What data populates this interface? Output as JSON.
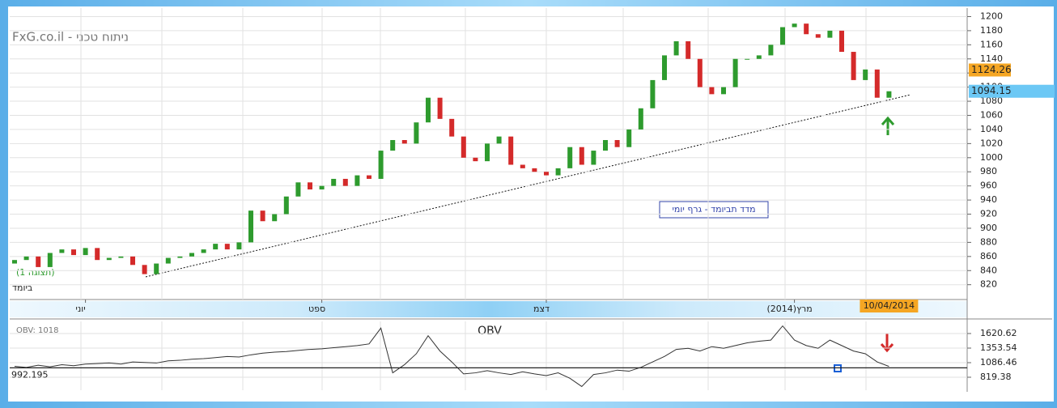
{
  "chart_data": [
    {
      "type": "candlestick",
      "title": "FxG.co.il - ניתוח טכני",
      "subtitle": "ביומד",
      "annotations": [
        "(תצוגה 1)",
        "מדד תביומד - גרף יומי"
      ],
      "categories": [
        null,
        null,
        null,
        null,
        null,
        null,
        "יוני",
        null,
        null,
        null,
        null,
        null,
        null,
        null,
        null,
        null,
        null,
        null,
        null,
        null,
        null,
        null,
        null,
        null,
        null,
        null,
        "ספט",
        null,
        null,
        null,
        null,
        null,
        null,
        null,
        null,
        null,
        null,
        null,
        null,
        null,
        null,
        null,
        null,
        null,
        null,
        "דצמ",
        null,
        null,
        null,
        null,
        null,
        null,
        null,
        null,
        null,
        null,
        null,
        null,
        null,
        null,
        null,
        null,
        null,
        null,
        null,
        null,
        "מרץ(2014)",
        null,
        null,
        null,
        null,
        null,
        null,
        null,
        "10/04/2014"
      ],
      "open": [
        850,
        855,
        860,
        845,
        865,
        870,
        862,
        872,
        855,
        858,
        860,
        848,
        835,
        850,
        858,
        860,
        865,
        870,
        878,
        870,
        880,
        925,
        910,
        920,
        945,
        965,
        955,
        960,
        970,
        960,
        975,
        970,
        1010,
        1025,
        1020,
        1050,
        1085,
        1055,
        1030,
        1000,
        995,
        1020,
        1030,
        990,
        985,
        980,
        975,
        985,
        1015,
        990,
        1010,
        1025,
        1015,
        1040,
        1070,
        1110,
        1145,
        1165,
        1140,
        1100,
        1090,
        1100,
        1140,
        1140,
        1145,
        1160,
        1185,
        1190,
        1175,
        1170,
        1180,
        1150,
        1110,
        1125,
        1085
      ],
      "close": [
        855,
        860,
        845,
        865,
        870,
        862,
        872,
        855,
        858,
        860,
        848,
        835,
        850,
        858,
        860,
        865,
        870,
        878,
        870,
        880,
        925,
        910,
        920,
        945,
        965,
        955,
        960,
        970,
        960,
        975,
        970,
        1010,
        1025,
        1020,
        1050,
        1085,
        1055,
        1030,
        1000,
        995,
        1020,
        1030,
        990,
        985,
        980,
        975,
        985,
        1015,
        990,
        1010,
        1025,
        1015,
        1040,
        1070,
        1110,
        1145,
        1165,
        1140,
        1100,
        1090,
        1100,
        1140,
        1140,
        1145,
        1160,
        1185,
        1190,
        1175,
        1170,
        1180,
        1150,
        1110,
        1125,
        1085,
        1094.15
      ],
      "up_color": "#2e9b2e",
      "down_color": "#d42a2a",
      "ylim": [
        799,
        1212
      ],
      "yticks": [
        820,
        840,
        860,
        880,
        900,
        920,
        940,
        960,
        980,
        1000,
        1020,
        1040,
        1060,
        1080,
        1100,
        1120,
        1140,
        1160,
        1180,
        1200
      ],
      "grid": true,
      "price_markers": [
        {
          "value": 1124.26,
          "color": "#f5a623"
        },
        {
          "value": 1094.15,
          "color": "#6cc8f5"
        }
      ]
    },
    {
      "type": "line",
      "title": "OBV",
      "label": "OBV: 1018",
      "color": "#333333",
      "values": [
        1020,
        1000,
        1040,
        1010,
        1050,
        1030,
        1060,
        1070,
        1080,
        1060,
        1100,
        1090,
        1080,
        1120,
        1130,
        1150,
        1160,
        1180,
        1200,
        1190,
        1230,
        1260,
        1280,
        1290,
        1310,
        1330,
        1340,
        1360,
        1380,
        1400,
        1430,
        1720,
        900,
        1050,
        1250,
        1580,
        1300,
        1100,
        880,
        900,
        940,
        900,
        870,
        920,
        880,
        850,
        900,
        800,
        650,
        870,
        900,
        950,
        930,
        1000,
        1100,
        1200,
        1330,
        1350,
        1300,
        1380,
        1350,
        1400,
        1450,
        1480,
        1500,
        1760,
        1500,
        1400,
        1350,
        1500,
        1400,
        1300,
        1250,
        1100,
        1018
      ],
      "ylim": [
        582,
        1843
      ],
      "yticks": [
        819.38,
        1086.46,
        1353.54,
        1620.62
      ],
      "reference": 992.195
    }
  ]
}
